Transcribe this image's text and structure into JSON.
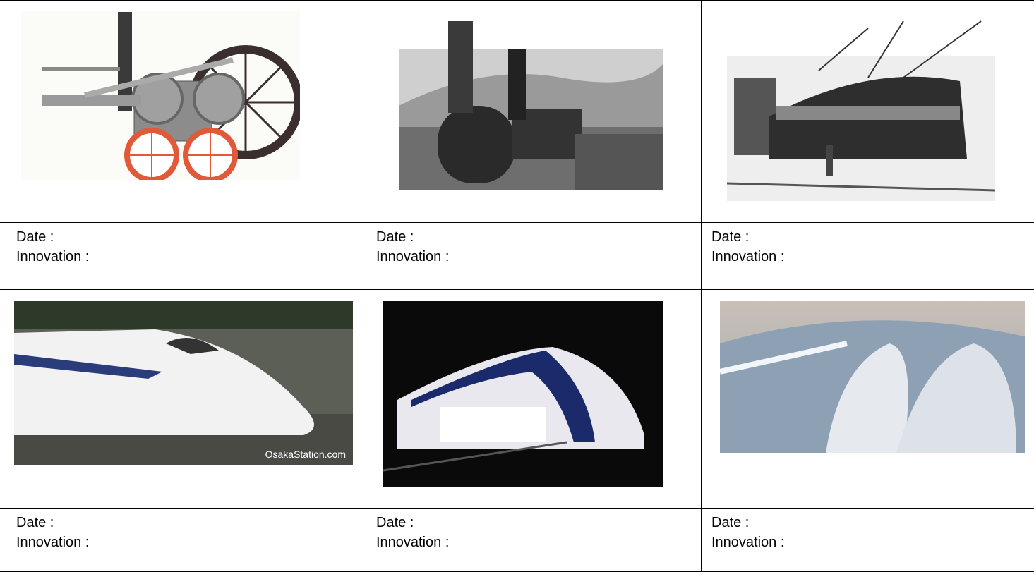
{
  "table": {
    "rows": [
      [
        {
          "date": "Date :",
          "innovation": "Innovation :"
        },
        {
          "date": "Date :",
          "innovation": "Innovation :"
        },
        {
          "date": "Date :",
          "innovation": "Innovation :"
        }
      ],
      [
        {
          "date": "Date :",
          "innovation": "Innovation :"
        },
        {
          "date": "Date :",
          "innovation": "Innovation :"
        },
        {
          "date": "Date :",
          "innovation": "Innovation :"
        }
      ]
    ]
  },
  "images": {
    "watermark": "OsakaStation.com"
  }
}
